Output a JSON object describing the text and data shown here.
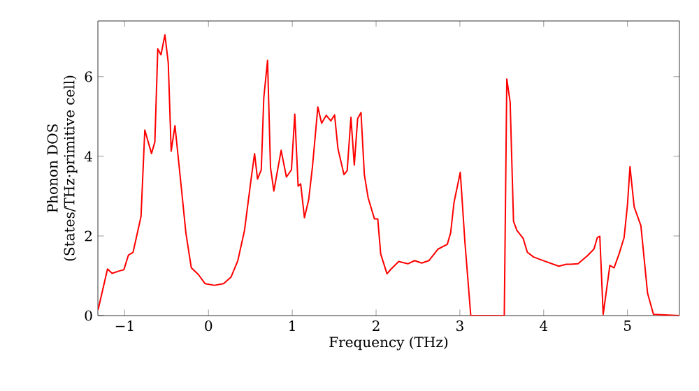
{
  "chart_data": {
    "type": "line",
    "xlabel": "Frequency (THz)",
    "ylabel": "Phonon DOS\n(States/THz·primitive cell)",
    "xlim": [
      -1.32,
      5.62
    ],
    "ylim": [
      0,
      7.4
    ],
    "xticks": [
      {
        "value": -1,
        "label": "−1"
      },
      0,
      1,
      2,
      3,
      4,
      5
    ],
    "yticks": [
      0,
      2,
      4,
      6
    ],
    "marker": "none",
    "line_style": "solid",
    "series": [
      {
        "color": "#ff0000",
        "x": [
          -1.317,
          -1.205,
          -1.15,
          -1.067,
          -1.01,
          -0.955,
          -0.9,
          -0.805,
          -0.76,
          -0.68,
          -0.64,
          -0.605,
          -0.567,
          -0.52,
          -0.48,
          -0.445,
          -0.4,
          -0.32,
          -0.27,
          -0.205,
          -0.12,
          -0.04,
          0.07,
          0.18,
          0.27,
          0.35,
          0.43,
          0.505,
          0.55,
          0.585,
          0.63,
          0.66,
          0.705,
          0.74,
          0.78,
          0.867,
          0.93,
          0.99,
          1.03,
          1.07,
          1.1,
          1.145,
          1.195,
          1.24,
          1.305,
          1.35,
          1.405,
          1.46,
          1.505,
          1.545,
          1.617,
          1.655,
          1.7,
          1.74,
          1.78,
          1.82,
          1.86,
          1.905,
          1.98,
          2.02,
          2.055,
          2.13,
          2.18,
          2.27,
          2.38,
          2.46,
          2.545,
          2.63,
          2.74,
          2.85,
          2.89,
          2.93,
          3.005,
          3.06,
          3.13,
          3.53,
          3.56,
          3.6,
          3.64,
          3.68,
          3.755,
          3.805,
          3.88,
          4.02,
          4.18,
          4.27,
          4.32,
          4.41,
          4.52,
          4.6,
          4.64,
          4.67,
          4.71,
          4.79,
          4.84,
          4.9,
          4.96,
          5.0,
          5.03,
          5.08,
          5.16,
          5.24,
          5.31,
          5.62
        ],
        "values": [
          0.15,
          1.17,
          1.06,
          1.12,
          1.15,
          1.52,
          1.59,
          2.49,
          4.66,
          4.07,
          4.36,
          6.7,
          6.55,
          7.05,
          6.35,
          4.13,
          4.77,
          3.13,
          2.08,
          1.2,
          1.03,
          0.8,
          0.76,
          0.8,
          0.97,
          1.38,
          2.14,
          3.37,
          4.07,
          3.43,
          3.66,
          5.47,
          6.41,
          3.72,
          3.13,
          4.15,
          3.48,
          3.66,
          5.06,
          3.25,
          3.31,
          2.46,
          2.9,
          3.72,
          5.24,
          4.83,
          5.03,
          4.89,
          5.04,
          4.19,
          3.54,
          3.64,
          4.98,
          3.78,
          4.95,
          5.1,
          3.54,
          2.96,
          2.43,
          2.43,
          1.55,
          1.05,
          1.17,
          1.36,
          1.3,
          1.38,
          1.32,
          1.38,
          1.67,
          1.79,
          2.08,
          2.84,
          3.6,
          1.85,
          0,
          0,
          5.94,
          5.36,
          2.37,
          2.14,
          1.94,
          1.59,
          1.47,
          1.36,
          1.24,
          1.29,
          1.29,
          1.3,
          1.5,
          1.67,
          1.96,
          1.99,
          0.03,
          1.26,
          1.2,
          1.55,
          1.96,
          2.78,
          3.74,
          2.73,
          2.26,
          0.56,
          0.03,
          0
        ]
      }
    ]
  }
}
